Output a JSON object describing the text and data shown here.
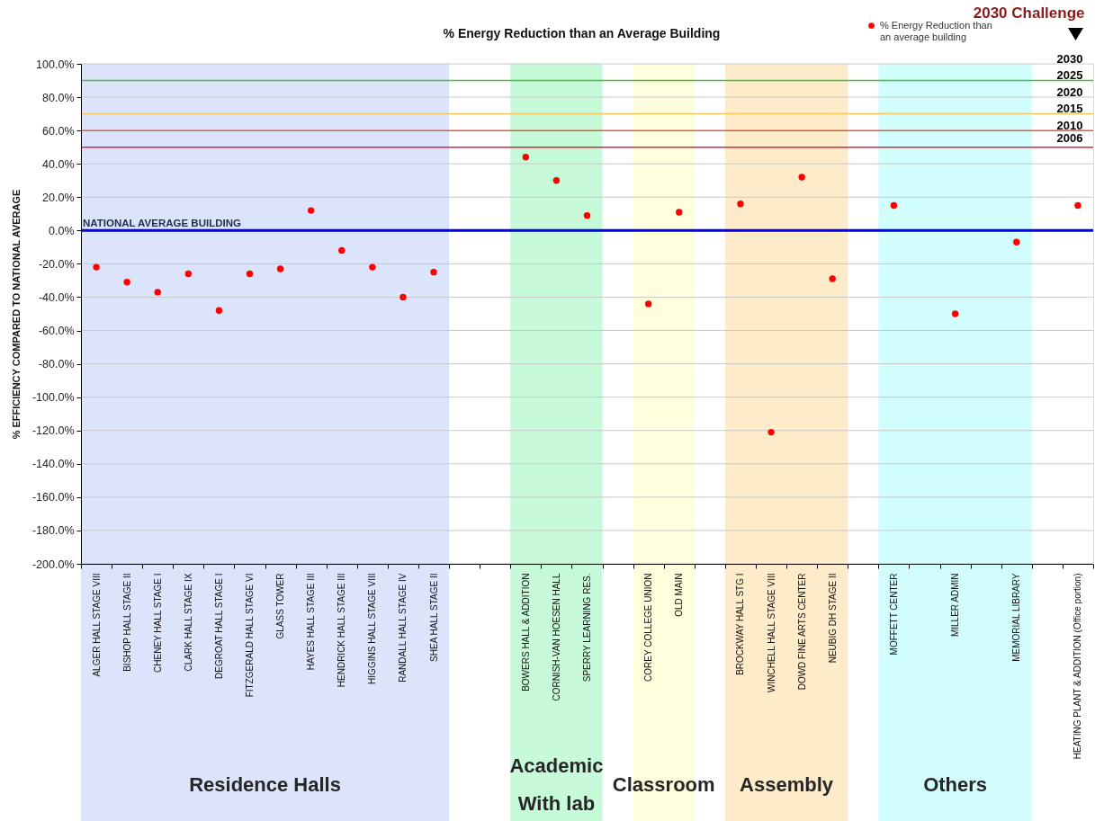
{
  "chart_data": {
    "type": "scatter",
    "title": "% Energy Reduction than an Average Building",
    "ylabel": "% EFFICIENCY COMPARED TO NATIONAL AVERAGE",
    "y2label": "2030 Challenge",
    "categories": [
      "ALGER HALL STAGE VIII",
      "BISHOP HALL STAGE II",
      "CHENEY HALL STAGE I",
      "CLARK HALL STAGE IX",
      "DEGROAT HALL STAGE I",
      "FITZGERALD HALL STAGE VI",
      "GLASS TOWER",
      "HAYES HALL STAGE III",
      "HENDRICK HALL STAGE III",
      "HIGGINS HALL STAGE VIII",
      "RANDALL HALL STAGE IV",
      "SHEA HALL STAGE II",
      null,
      null,
      "BOWERS HALL & ADDITION",
      "CORNISH-VAN HOESEN HALL",
      "SPERRY LEARNING RES.",
      null,
      "COREY COLLEGE UNION",
      "OLD MAIN",
      null,
      "BROCKWAY HALL STG I",
      "WINCHELL HALL STAGE VIII",
      "DOWD FINE ARTS CENTER",
      "NEUBIG DH STAGE II",
      null,
      "MOFFETT CENTER",
      null,
      "MILLER ADMIN",
      null,
      "MEMORIAL LIBRARY",
      null,
      "HEATING PLANT & ADDITION (Office portion)"
    ],
    "series": [
      {
        "name": "% Energy Reduction than an average building",
        "color": "#ff0000",
        "values": [
          -22,
          -31,
          -37,
          -26,
          -48,
          -26,
          -23,
          12,
          -12,
          -22,
          -40,
          -25,
          null,
          null,
          44,
          30,
          9,
          null,
          -44,
          11,
          null,
          16,
          -121,
          32,
          -29,
          null,
          15,
          null,
          -50,
          null,
          -7,
          null,
          15
        ]
      }
    ],
    "ylim": [
      -200,
      100
    ],
    "yticks": [
      {
        "value": -200,
        "label": "-200.0%"
      },
      {
        "value": -180,
        "label": "-180.0%"
      },
      {
        "value": -160,
        "label": "-160.0%"
      },
      {
        "value": -140,
        "label": "-140.0%"
      },
      {
        "value": -120,
        "label": "-120.0%"
      },
      {
        "value": -100,
        "label": "-100.0%"
      },
      {
        "value": -80,
        "label": "-80.0%"
      },
      {
        "value": -60,
        "label": "-60.0%"
      },
      {
        "value": -40,
        "label": "-40.0%"
      },
      {
        "value": -20,
        "label": "-20.0%"
      },
      {
        "value": 0,
        "label": "0.0%"
      },
      {
        "value": 20,
        "label": "20.0%"
      },
      {
        "value": 40,
        "label": "40.0%"
      },
      {
        "value": 60,
        "label": "60.0%"
      },
      {
        "value": 80,
        "label": "80.0%"
      },
      {
        "value": 100,
        "label": "100.0%"
      }
    ],
    "y2lim": [
      1880,
      2030
    ],
    "y2ticks": [
      2030,
      2025,
      2020,
      2015,
      2010,
      2006
    ],
    "grid": "y",
    "legend": "top right",
    "marker": "circle",
    "ref_lines": [
      {
        "axis": "y",
        "value": 90,
        "color": "#3ec63e"
      },
      {
        "axis": "y",
        "value": 70,
        "color": "#f6c65a"
      },
      {
        "axis": "y",
        "value": 60,
        "color": "#e25b3c"
      },
      {
        "axis": "y",
        "value": 50,
        "color": "#d9263b"
      },
      {
        "axis": "y",
        "value": 0,
        "label": "NATIONAL AVERAGE BUILDING",
        "color": "#0000ee"
      }
    ],
    "bands": [
      {
        "axis": "x",
        "from": "ALGER HALL STAGE VIII",
        "to": "SHEA HALL STAGE II",
        "label": "Residence Halls",
        "color": "#dce4fc"
      },
      {
        "axis": "x",
        "from": "BOWERS HALL & ADDITION",
        "to": "SPERRY LEARNING RES.",
        "label": "Academic\nWith lab",
        "color": "#c7fad8"
      },
      {
        "axis": "x",
        "from": "COREY COLLEGE UNION",
        "to": "OLD MAIN",
        "label": "Classroom",
        "color": "#fffedd"
      },
      {
        "axis": "x",
        "from": "BROCKWAY HALL STG I",
        "to": "NEUBIG DH STAGE II",
        "label": "Assembly",
        "color": "#fdebc9"
      },
      {
        "axis": "x",
        "from": "MOFFETT CENTER",
        "to": "MEMORIAL LIBRARY",
        "label": "Others",
        "color": "#d2fdfd"
      }
    ]
  }
}
